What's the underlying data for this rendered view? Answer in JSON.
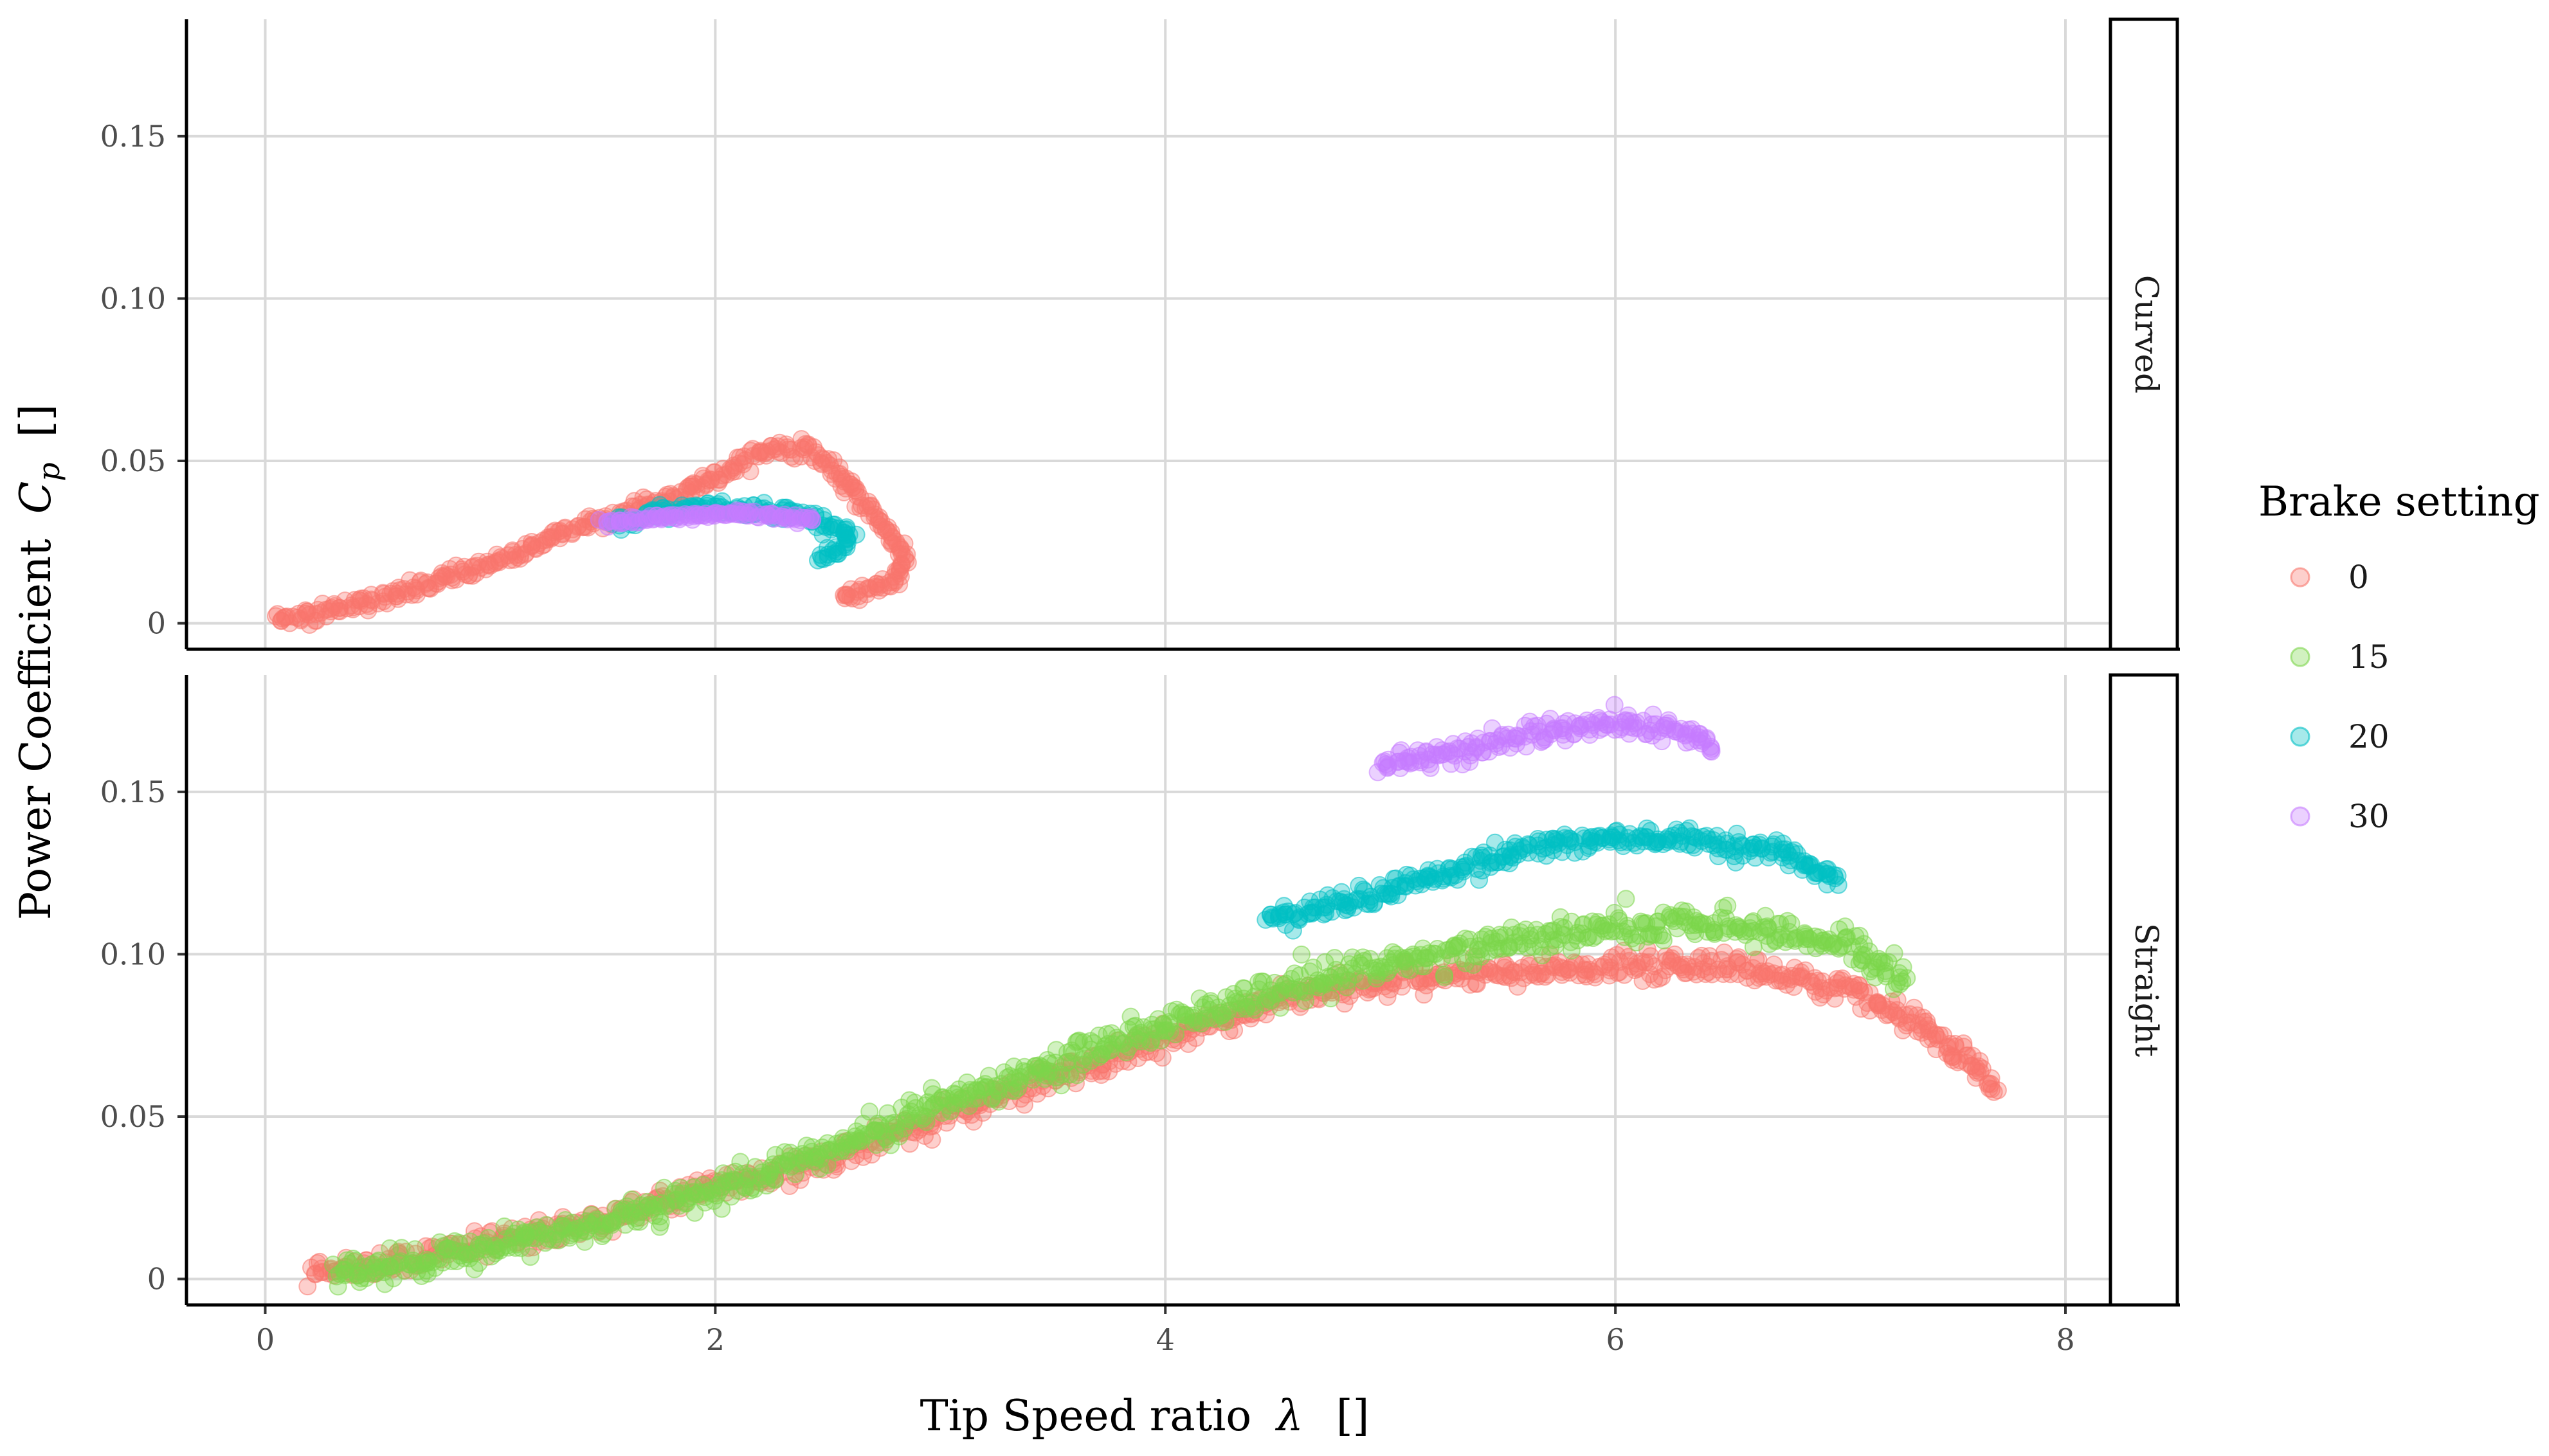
{
  "chart_data": {
    "type": "scatter",
    "xlabel": "Tip Speed ratio",
    "xlabel_symbol": "λ",
    "xlabel_unit": "[]",
    "ylabel": "Power Coefficient",
    "ylabel_symbol": "C",
    "ylabel_subscript": "p",
    "ylabel_unit": "[]",
    "xlim": [
      -0.35,
      8.2
    ],
    "ylim": [
      -0.008,
      0.186
    ],
    "x_ticks": [
      0,
      2,
      4,
      6,
      8
    ],
    "x_tick_labels": [
      "0",
      "2",
      "4",
      "6",
      "8"
    ],
    "y_ticks": [
      0,
      0.05,
      0.1,
      0.15
    ],
    "y_tick_labels": [
      "0",
      "0.05",
      "0.10",
      "0.15"
    ],
    "grid": true,
    "legend": {
      "title": "Brake setting",
      "placement": "right",
      "entries": [
        {
          "label": "0",
          "color": "#F8766D"
        },
        {
          "label": "15",
          "color": "#7CD64A"
        },
        {
          "label": "20",
          "color": "#00BFC4"
        },
        {
          "label": "30",
          "color": "#C77CFF"
        }
      ]
    },
    "panels": [
      {
        "strip_label": "Curved",
        "series": [
          {
            "brake": "0",
            "color": "#F8766D",
            "spread": 0.0025,
            "path": [
              [
                0.05,
                0.001
              ],
              [
                0.3,
                0.004
              ],
              [
                0.6,
                0.009
              ],
              [
                0.9,
                0.016
              ],
              [
                1.1,
                0.021
              ],
              [
                1.35,
                0.029
              ],
              [
                1.6,
                0.034
              ],
              [
                1.85,
                0.04
              ],
              [
                2.05,
                0.047
              ],
              [
                2.25,
                0.054
              ],
              [
                2.4,
                0.054
              ],
              [
                2.5,
                0.049
              ],
              [
                2.62,
                0.04
              ],
              [
                2.75,
                0.03
              ],
              [
                2.85,
                0.02
              ],
              [
                2.8,
                0.013
              ],
              [
                2.65,
                0.009
              ],
              [
                2.55,
                0.008
              ]
            ]
          },
          {
            "brake": "20",
            "color": "#00BFC4",
            "spread": 0.002,
            "path": [
              [
                1.55,
                0.03
              ],
              [
                1.75,
                0.034
              ],
              [
                1.95,
                0.036
              ],
              [
                2.15,
                0.035
              ],
              [
                2.35,
                0.034
              ],
              [
                2.5,
                0.031
              ],
              [
                2.6,
                0.027
              ],
              [
                2.55,
                0.022
              ],
              [
                2.45,
                0.021
              ]
            ]
          },
          {
            "brake": "30",
            "color": "#C77CFF",
            "spread": 0.0012,
            "path": [
              [
                1.5,
                0.031
              ],
              [
                1.7,
                0.032
              ],
              [
                1.9,
                0.033
              ],
              [
                2.1,
                0.034
              ],
              [
                2.3,
                0.033
              ],
              [
                2.45,
                0.032
              ]
            ]
          }
        ]
      },
      {
        "strip_label": "Straight",
        "series": [
          {
            "brake": "0",
            "color": "#F8766D",
            "spread": 0.004,
            "path": [
              [
                0.2,
                0.001
              ],
              [
                0.6,
                0.006
              ],
              [
                1.0,
                0.011
              ],
              [
                1.5,
                0.018
              ],
              [
                2.0,
                0.028
              ],
              [
                2.5,
                0.037
              ],
              [
                3.0,
                0.05
              ],
              [
                3.5,
                0.062
              ],
              [
                4.0,
                0.074
              ],
              [
                4.5,
                0.086
              ],
              [
                5.0,
                0.092
              ],
              [
                5.5,
                0.094
              ],
              [
                6.0,
                0.096
              ],
              [
                6.5,
                0.097
              ],
              [
                7.0,
                0.09
              ],
              [
                7.3,
                0.08
              ],
              [
                7.5,
                0.07
              ],
              [
                7.7,
                0.059
              ]
            ]
          },
          {
            "brake": "15",
            "color": "#7CD64A",
            "spread": 0.005,
            "path": [
              [
                0.3,
                0.001
              ],
              [
                0.8,
                0.007
              ],
              [
                1.4,
                0.016
              ],
              [
                2.0,
                0.027
              ],
              [
                2.5,
                0.04
              ],
              [
                3.0,
                0.054
              ],
              [
                3.5,
                0.066
              ],
              [
                4.0,
                0.078
              ],
              [
                4.5,
                0.089
              ],
              [
                5.0,
                0.097
              ],
              [
                5.5,
                0.104
              ],
              [
                6.0,
                0.108
              ],
              [
                6.5,
                0.109
              ],
              [
                7.0,
                0.104
              ],
              [
                7.3,
                0.092
              ]
            ]
          },
          {
            "brake": "20",
            "color": "#00BFC4",
            "spread": 0.0035,
            "path": [
              [
                4.45,
                0.111
              ],
              [
                4.8,
                0.116
              ],
              [
                5.2,
                0.124
              ],
              [
                5.6,
                0.133
              ],
              [
                6.0,
                0.136
              ],
              [
                6.4,
                0.135
              ],
              [
                6.7,
                0.132
              ],
              [
                7.0,
                0.122
              ]
            ]
          },
          {
            "brake": "30",
            "color": "#C77CFF",
            "spread": 0.0035,
            "path": [
              [
                4.95,
                0.158
              ],
              [
                5.3,
                0.163
              ],
              [
                5.7,
                0.168
              ],
              [
                6.0,
                0.171
              ],
              [
                6.3,
                0.168
              ],
              [
                6.45,
                0.163
              ]
            ]
          }
        ]
      }
    ]
  }
}
